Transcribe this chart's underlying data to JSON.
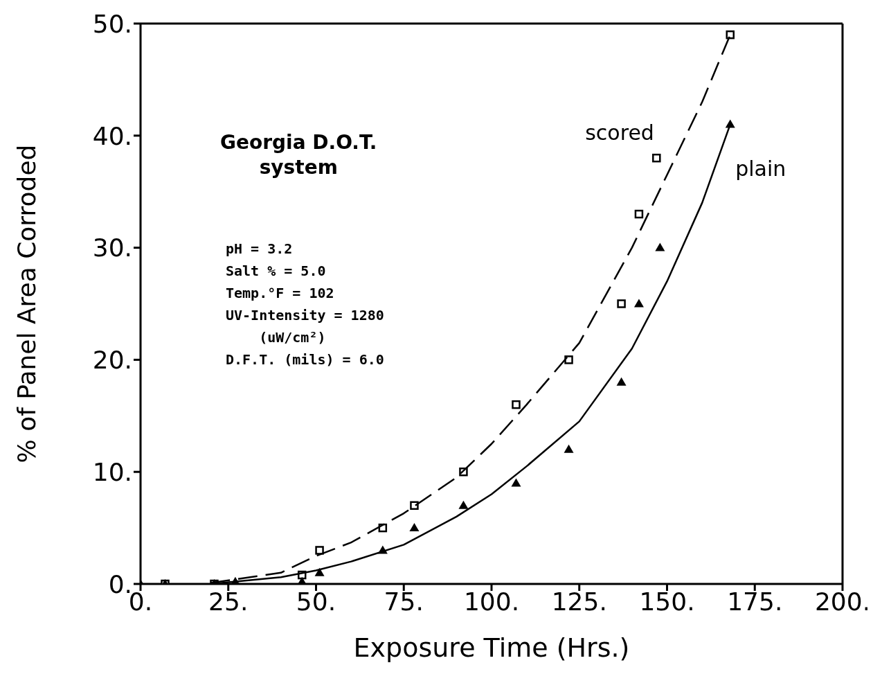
{
  "chart_data": {
    "type": "scatter",
    "xlabel": "Exposure Time (Hrs.)",
    "ylabel": "% of Panel Area Corroded",
    "xlim": [
      0,
      200
    ],
    "ylim": [
      0,
      50
    ],
    "xticks": [
      {
        "value": 0,
        "label": "0."
      },
      {
        "value": 25,
        "label": "25."
      },
      {
        "value": 50,
        "label": "50."
      },
      {
        "value": 75,
        "label": "75."
      },
      {
        "value": 100,
        "label": "100."
      },
      {
        "value": 125,
        "label": "125."
      },
      {
        "value": 150,
        "label": "150."
      },
      {
        "value": 175,
        "label": "175."
      },
      {
        "value": 200,
        "label": "200."
      }
    ],
    "yticks": [
      {
        "value": 0,
        "label": "0."
      },
      {
        "value": 10,
        "label": "10."
      },
      {
        "value": 20,
        "label": "20."
      },
      {
        "value": 30,
        "label": "30."
      },
      {
        "value": 40,
        "label": "40."
      },
      {
        "value": 50,
        "label": "50."
      }
    ],
    "legend": false,
    "annotations": [
      "Georgia D.O.T.\nsystem",
      "pH = 3.2\nSalt % = 5.0\nTemp.°F = 102\nUV-Intensity = 1280\n    (uW/cm²)\nD.F.T. (mils) = 6.0"
    ],
    "series": [
      {
        "marker": "square",
        "color": "#000000",
        "x": [
          7,
          21,
          46,
          51,
          69,
          78,
          92,
          107,
          122,
          137,
          142,
          147,
          168
        ],
        "values": [
          0,
          0,
          0.8,
          3,
          5,
          7,
          10,
          16,
          20,
          25,
          33,
          38,
          49
        ]
      },
      {
        "marker": "triangle",
        "color": "#000000",
        "x": [
          0,
          7,
          21,
          27,
          46,
          51,
          69,
          78,
          92,
          107,
          122,
          137,
          142,
          148,
          168
        ],
        "values": [
          0,
          0,
          0,
          0.2,
          0.2,
          1,
          3,
          5,
          7,
          9,
          12,
          18,
          25,
          30,
          41
        ]
      },
      {
        "type": "line",
        "name": "scored",
        "marker": "none",
        "line_style": "dashed",
        "color": "#000000",
        "x": [
          20,
          40,
          50,
          60,
          75,
          90,
          100,
          110,
          125,
          140,
          150,
          160,
          168
        ],
        "values": [
          0.1,
          1,
          2.5,
          3.7,
          6.3,
          9.5,
          12.5,
          16,
          21.5,
          30,
          36.5,
          43,
          49
        ]
      },
      {
        "type": "line",
        "name": "plain",
        "marker": "none",
        "line_style": "solid",
        "color": "#000000",
        "x": [
          20,
          40,
          50,
          60,
          75,
          90,
          100,
          110,
          125,
          140,
          150,
          160,
          168
        ],
        "values": [
          0,
          0.6,
          1.2,
          2,
          3.5,
          6,
          8,
          10.5,
          14.5,
          21,
          27,
          34,
          41
        ]
      }
    ]
  }
}
